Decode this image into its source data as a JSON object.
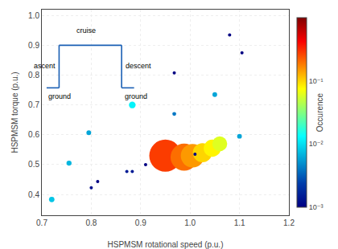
{
  "chart_data": {
    "type": "scatter",
    "xlabel": "HSPMSM rotational speed (p.u.)",
    "ylabel": "HSPMSM torque (p.u.)",
    "x": [
      0.95,
      0.988,
      1.005,
      1.025,
      1.045,
      1.06,
      0.883,
      0.72,
      0.755,
      0.795,
      1.05,
      1.1,
      0.968,
      0.872,
      0.883,
      0.8,
      0.813,
      0.91,
      0.968,
      1.01,
      1.08,
      1.105
    ],
    "y": [
      0.53,
      0.525,
      0.53,
      0.54,
      0.555,
      0.57,
      0.7,
      0.383,
      0.505,
      0.607,
      0.735,
      0.595,
      0.67,
      0.477,
      0.477,
      0.422,
      0.443,
      0.5,
      0.808,
      0.535,
      0.935,
      0.875
    ],
    "occurrence": [
      0.28,
      0.2,
      0.15,
      0.1,
      0.08,
      0.06,
      0.012,
      0.008,
      0.007,
      0.006,
      0.006,
      0.006,
      0.004,
      0.0015,
      0.0015,
      0.0012,
      0.001,
      0.001,
      0.001,
      0.001,
      0.001,
      0.001
    ],
    "xlim": [
      0.7,
      1.2
    ],
    "ylim": [
      0.33,
      1.02
    ],
    "xticks": [
      0.7,
      0.8,
      0.9,
      {
        "value": 1.0,
        "label": "1.0"
      },
      1.1,
      1.2
    ],
    "yticks": [
      0.4,
      0.5,
      0.6,
      0.7,
      0.8,
      0.9,
      {
        "value": 1.0,
        "label": "1.0"
      }
    ],
    "grid": true,
    "color_label": "Occurence",
    "color_range": [
      0.001,
      1
    ],
    "color_ticks": [
      {
        "value": 0.001,
        "label": "10⁻³"
      },
      {
        "value": 0.01,
        "label": "10⁻²"
      },
      {
        "value": 0.1,
        "label": "10⁻¹"
      }
    ],
    "annotations": [
      "cruise",
      "ascent",
      "descent",
      "ground",
      "ground"
    ]
  }
}
